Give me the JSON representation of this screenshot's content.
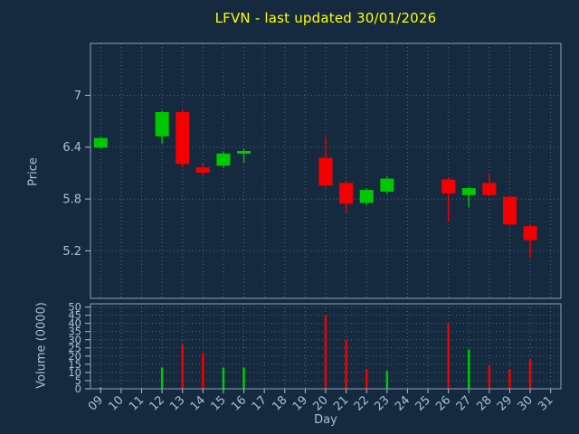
{
  "colors": {
    "background": "#152a3e",
    "title": "#ffff00",
    "tick_label": "#a6c0da",
    "spine": "#8aa2ba",
    "grid": "#4e6478",
    "up": "#00c800",
    "down": "#f40000"
  },
  "chart_data": {
    "type": "candlestick+volume",
    "title": "LFVN - last updated 30/01/2026",
    "grid": "dotted",
    "price_axis": {
      "label": "Price",
      "ylim": [
        4.65,
        7.6
      ],
      "ticks": [
        {
          "v": 7,
          "label": "7"
        },
        {
          "v": 6.4,
          "label": "6.4"
        },
        {
          "v": 5.8,
          "label": "5.8"
        },
        {
          "v": 5.2,
          "label": "5.2"
        }
      ]
    },
    "volume_axis": {
      "label": "Volume (0000)",
      "ylim": [
        0,
        52
      ],
      "ticks": [
        {
          "v": 50,
          "label": "50"
        },
        {
          "v": 45,
          "label": "45"
        },
        {
          "v": 40,
          "label": "40"
        },
        {
          "v": 35,
          "label": "35"
        },
        {
          "v": 30,
          "label": "30"
        },
        {
          "v": 25,
          "label": "25"
        },
        {
          "v": 20,
          "label": "20"
        },
        {
          "v": 15,
          "label": "15"
        },
        {
          "v": 10,
          "label": "10"
        },
        {
          "v": 5,
          "label": "5"
        },
        {
          "v": 0,
          "label": "0"
        }
      ]
    },
    "x_axis": {
      "label": "Day",
      "xlim": [
        8.5,
        31.5
      ],
      "ticks": [
        {
          "v": 9,
          "label": "09"
        },
        {
          "v": 10,
          "label": "10"
        },
        {
          "v": 11,
          "label": "11"
        },
        {
          "v": 12,
          "label": "12"
        },
        {
          "v": 13,
          "label": "13"
        },
        {
          "v": 14,
          "label": "14"
        },
        {
          "v": 15,
          "label": "15"
        },
        {
          "v": 16,
          "label": "16"
        },
        {
          "v": 17,
          "label": "17"
        },
        {
          "v": 18,
          "label": "18"
        },
        {
          "v": 19,
          "label": "19"
        },
        {
          "v": 20,
          "label": "20"
        },
        {
          "v": 21,
          "label": "21"
        },
        {
          "v": 22,
          "label": "22"
        },
        {
          "v": 23,
          "label": "23"
        },
        {
          "v": 24,
          "label": "24"
        },
        {
          "v": 25,
          "label": "25"
        },
        {
          "v": 26,
          "label": "26"
        },
        {
          "v": 27,
          "label": "27"
        },
        {
          "v": 28,
          "label": "28"
        },
        {
          "v": 29,
          "label": "29"
        },
        {
          "v": 30,
          "label": "30"
        },
        {
          "v": 31,
          "label": "31"
        }
      ]
    },
    "candles": [
      {
        "day": 9,
        "open": 6.4,
        "high": 6.52,
        "low": 6.38,
        "close": 6.5,
        "volume": 1,
        "vcolor": "up"
      },
      {
        "day": 12,
        "open": 6.53,
        "high": 6.82,
        "low": 6.44,
        "close": 6.8,
        "volume": 13,
        "vcolor": "up"
      },
      {
        "day": 13,
        "open": 6.8,
        "high": 6.83,
        "low": 6.17,
        "close": 6.21,
        "volume": 27,
        "vcolor": "down"
      },
      {
        "day": 14,
        "open": 6.16,
        "high": 6.21,
        "low": 6.07,
        "close": 6.11,
        "volume": 22,
        "vcolor": "down"
      },
      {
        "day": 15,
        "open": 6.19,
        "high": 6.35,
        "low": 6.16,
        "close": 6.32,
        "volume": 13,
        "vcolor": "up"
      },
      {
        "day": 16,
        "open": 6.33,
        "high": 6.38,
        "low": 6.22,
        "close": 6.35,
        "volume": 13,
        "vcolor": "up"
      },
      {
        "day": 20,
        "open": 6.27,
        "high": 6.52,
        "low": 5.94,
        "close": 5.96,
        "volume": 45,
        "vcolor": "down"
      },
      {
        "day": 21,
        "open": 5.98,
        "high": 6.01,
        "low": 5.64,
        "close": 5.75,
        "volume": 30,
        "vcolor": "down"
      },
      {
        "day": 22,
        "open": 5.76,
        "high": 5.92,
        "low": 5.73,
        "close": 5.9,
        "volume": 12,
        "vcolor": "down"
      },
      {
        "day": 23,
        "open": 5.89,
        "high": 6.06,
        "low": 5.86,
        "close": 6.03,
        "volume": 11,
        "vcolor": "up"
      },
      {
        "day": 26,
        "open": 6.02,
        "high": 6.05,
        "low": 5.53,
        "close": 5.87,
        "volume": 40,
        "vcolor": "down"
      },
      {
        "day": 27,
        "open": 5.85,
        "high": 5.94,
        "low": 5.7,
        "close": 5.92,
        "volume": 24,
        "vcolor": "up"
      },
      {
        "day": 28,
        "open": 5.98,
        "high": 6.1,
        "low": 5.83,
        "close": 5.85,
        "volume": 14,
        "vcolor": "down"
      },
      {
        "day": 29,
        "open": 5.82,
        "high": 5.84,
        "low": 5.49,
        "close": 5.51,
        "volume": 12,
        "vcolor": "down"
      },
      {
        "day": 30,
        "open": 5.48,
        "high": 5.5,
        "low": 5.12,
        "close": 5.33,
        "volume": 18,
        "vcolor": "down"
      }
    ]
  }
}
